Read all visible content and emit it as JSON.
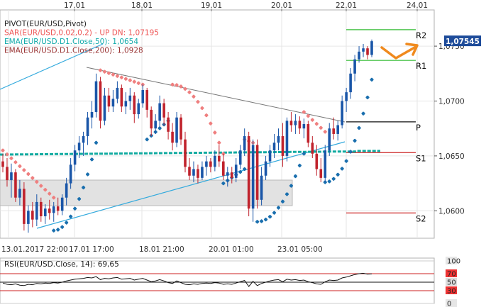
{
  "chart_data": {
    "type": "candlestick",
    "top_dates": [
      "17.01",
      "18.01",
      "19.01",
      "20.01",
      "22.01",
      "24.01"
    ],
    "bottom_dates": [
      "13.01.2017 22:00",
      "17.01 17:00",
      "18.01 21:00",
      "20.01 01:00",
      "23.01 05:00"
    ],
    "y_ticks": [
      "1,0750",
      "1,0700",
      "1,0650",
      "1,0600"
    ],
    "y_tick_values": [
      1.075,
      1.07,
      1.065,
      1.06
    ],
    "ylim": [
      1.0575,
      1.0783
    ],
    "current_price": "1,07545",
    "current_price_value": 1.07545,
    "legend": [
      {
        "text": "PIVOT(EUR/USD,Pivot)",
        "color": "#222222"
      },
      {
        "text": "SAR(EUR/USD,0.02,0.2) - UP  DN: 1,07195",
        "color": "#ee5555"
      },
      {
        "text": "EMA(EUR/USD.D1.Close,50): 1,0654",
        "color": "#11aaaa"
      },
      {
        "text": "EMA(EUR/USD.D1.Close,200): 1,0928",
        "color": "#993333"
      }
    ],
    "pivot_levels": [
      {
        "name": "R2",
        "value": 1.0765,
        "color": "#33bb33"
      },
      {
        "name": "R1",
        "value": 1.0737,
        "color": "#33bb33"
      },
      {
        "name": "P",
        "value": 1.0681,
        "color": "#111111"
      },
      {
        "name": "S1",
        "value": 1.0653,
        "color": "#cc2222"
      },
      {
        "name": "S2",
        "value": 1.0598,
        "color": "#cc2222"
      }
    ],
    "ema50_value": 1.0654,
    "sar_dn_value": 1.07195,
    "candles": [
      {
        "o": 1.0645,
        "h": 1.0652,
        "l": 1.0635,
        "c": 1.064
      },
      {
        "o": 1.064,
        "h": 1.0648,
        "l": 1.0622,
        "c": 1.0628
      },
      {
        "o": 1.0628,
        "h": 1.0643,
        "l": 1.0612,
        "c": 1.0635
      },
      {
        "o": 1.0635,
        "h": 1.0638,
        "l": 1.0608,
        "c": 1.0612
      },
      {
        "o": 1.0612,
        "h": 1.0628,
        "l": 1.0605,
        "c": 1.062
      },
      {
        "o": 1.062,
        "h": 1.0626,
        "l": 1.0582,
        "c": 1.0588
      },
      {
        "o": 1.0588,
        "h": 1.0605,
        "l": 1.058,
        "c": 1.06
      },
      {
        "o": 1.06,
        "h": 1.0608,
        "l": 1.0585,
        "c": 1.0592
      },
      {
        "o": 1.0592,
        "h": 1.0615,
        "l": 1.0586,
        "c": 1.0608
      },
      {
        "o": 1.0608,
        "h": 1.0612,
        "l": 1.059,
        "c": 1.0595
      },
      {
        "o": 1.0595,
        "h": 1.0606,
        "l": 1.0588,
        "c": 1.0602
      },
      {
        "o": 1.0602,
        "h": 1.061,
        "l": 1.0592,
        "c": 1.0598
      },
      {
        "o": 1.0598,
        "h": 1.0608,
        "l": 1.059,
        "c": 1.0604
      },
      {
        "o": 1.0604,
        "h": 1.0612,
        "l": 1.0596,
        "c": 1.06
      },
      {
        "o": 1.06,
        "h": 1.0615,
        "l": 1.0596,
        "c": 1.0612
      },
      {
        "o": 1.0612,
        "h": 1.063,
        "l": 1.0605,
        "c": 1.0625
      },
      {
        "o": 1.0625,
        "h": 1.0648,
        "l": 1.062,
        "c": 1.0642
      },
      {
        "o": 1.0642,
        "h": 1.066,
        "l": 1.0636,
        "c": 1.0655
      },
      {
        "o": 1.0655,
        "h": 1.0668,
        "l": 1.0648,
        "c": 1.0662
      },
      {
        "o": 1.0662,
        "h": 1.0672,
        "l": 1.065,
        "c": 1.0668
      },
      {
        "o": 1.0668,
        "h": 1.069,
        "l": 1.066,
        "c": 1.0685
      },
      {
        "o": 1.0685,
        "h": 1.07,
        "l": 1.0675,
        "c": 1.069
      },
      {
        "o": 1.069,
        "h": 1.0725,
        "l": 1.0685,
        "c": 1.0718
      },
      {
        "o": 1.0718,
        "h": 1.0722,
        "l": 1.0675,
        "c": 1.0682
      },
      {
        "o": 1.0682,
        "h": 1.0712,
        "l": 1.0678,
        "c": 1.0705
      },
      {
        "o": 1.0705,
        "h": 1.0712,
        "l": 1.069,
        "c": 1.0695
      },
      {
        "o": 1.0695,
        "h": 1.071,
        "l": 1.069,
        "c": 1.0702
      },
      {
        "o": 1.0702,
        "h": 1.0718,
        "l": 1.0698,
        "c": 1.0712
      },
      {
        "o": 1.0712,
        "h": 1.0715,
        "l": 1.069,
        "c": 1.0695
      },
      {
        "o": 1.0695,
        "h": 1.0708,
        "l": 1.0688,
        "c": 1.07
      },
      {
        "o": 1.07,
        "h": 1.0712,
        "l": 1.0692,
        "c": 1.0705
      },
      {
        "o": 1.0705,
        "h": 1.0708,
        "l": 1.068,
        "c": 1.0688
      },
      {
        "o": 1.0688,
        "h": 1.0702,
        "l": 1.0684,
        "c": 1.0698
      },
      {
        "o": 1.0698,
        "h": 1.0715,
        "l": 1.0694,
        "c": 1.071
      },
      {
        "o": 1.071,
        "h": 1.0712,
        "l": 1.0685,
        "c": 1.0692
      },
      {
        "o": 1.0692,
        "h": 1.0695,
        "l": 1.0668,
        "c": 1.0675
      },
      {
        "o": 1.0675,
        "h": 1.0688,
        "l": 1.067,
        "c": 1.0682
      },
      {
        "o": 1.0682,
        "h": 1.0705,
        "l": 1.0676,
        "c": 1.0698
      },
      {
        "o": 1.0698,
        "h": 1.0702,
        "l": 1.0678,
        "c": 1.0685
      },
      {
        "o": 1.0685,
        "h": 1.069,
        "l": 1.0665,
        "c": 1.0672
      },
      {
        "o": 1.0672,
        "h": 1.068,
        "l": 1.0655,
        "c": 1.0662
      },
      {
        "o": 1.0662,
        "h": 1.069,
        "l": 1.0658,
        "c": 1.0685
      },
      {
        "o": 1.0685,
        "h": 1.0688,
        "l": 1.066,
        "c": 1.0665
      },
      {
        "o": 1.0665,
        "h": 1.0672,
        "l": 1.0635,
        "c": 1.064
      },
      {
        "o": 1.064,
        "h": 1.0648,
        "l": 1.0628,
        "c": 1.0632
      },
      {
        "o": 1.0632,
        "h": 1.0645,
        "l": 1.0626,
        "c": 1.0638
      },
      {
        "o": 1.0638,
        "h": 1.0642,
        "l": 1.0625,
        "c": 1.063
      },
      {
        "o": 1.063,
        "h": 1.0645,
        "l": 1.0628,
        "c": 1.064
      },
      {
        "o": 1.064,
        "h": 1.065,
        "l": 1.0632,
        "c": 1.0645
      },
      {
        "o": 1.0645,
        "h": 1.0648,
        "l": 1.0635,
        "c": 1.064
      },
      {
        "o": 1.064,
        "h": 1.0655,
        "l": 1.0636,
        "c": 1.065
      },
      {
        "o": 1.065,
        "h": 1.066,
        "l": 1.064,
        "c": 1.0645
      },
      {
        "o": 1.0645,
        "h": 1.0652,
        "l": 1.0628,
        "c": 1.0632
      },
      {
        "o": 1.0632,
        "h": 1.064,
        "l": 1.0622,
        "c": 1.0635
      },
      {
        "o": 1.0635,
        "h": 1.064,
        "l": 1.0625,
        "c": 1.063
      },
      {
        "o": 1.063,
        "h": 1.0648,
        "l": 1.0626,
        "c": 1.0642
      },
      {
        "o": 1.0642,
        "h": 1.066,
        "l": 1.0638,
        "c": 1.0655
      },
      {
        "o": 1.0655,
        "h": 1.0675,
        "l": 1.065,
        "c": 1.0668
      },
      {
        "o": 1.0668,
        "h": 1.0672,
        "l": 1.0595,
        "c": 1.0602
      },
      {
        "o": 1.0602,
        "h": 1.0665,
        "l": 1.059,
        "c": 1.066
      },
      {
        "o": 1.066,
        "h": 1.0665,
        "l": 1.0602,
        "c": 1.061
      },
      {
        "o": 1.061,
        "h": 1.064,
        "l": 1.0605,
        "c": 1.0632
      },
      {
        "o": 1.0632,
        "h": 1.065,
        "l": 1.0628,
        "c": 1.0645
      },
      {
        "o": 1.0645,
        "h": 1.066,
        "l": 1.064,
        "c": 1.0655
      },
      {
        "o": 1.0655,
        "h": 1.067,
        "l": 1.0648,
        "c": 1.0662
      },
      {
        "o": 1.0662,
        "h": 1.0675,
        "l": 1.0655,
        "c": 1.0668
      },
      {
        "o": 1.0668,
        "h": 1.068,
        "l": 1.064,
        "c": 1.065
      },
      {
        "o": 1.065,
        "h": 1.0685,
        "l": 1.0645,
        "c": 1.0682
      },
      {
        "o": 1.0682,
        "h": 1.069,
        "l": 1.0672,
        "c": 1.0678
      },
      {
        "o": 1.0678,
        "h": 1.0688,
        "l": 1.067,
        "c": 1.0682
      },
      {
        "o": 1.0682,
        "h": 1.0686,
        "l": 1.067,
        "c": 1.0675
      },
      {
        "o": 1.0675,
        "h": 1.0684,
        "l": 1.0666,
        "c": 1.0679
      },
      {
        "o": 1.0679,
        "h": 1.0682,
        "l": 1.0658,
        "c": 1.0662
      },
      {
        "o": 1.0662,
        "h": 1.0668,
        "l": 1.0648,
        "c": 1.0652
      },
      {
        "o": 1.0652,
        "h": 1.066,
        "l": 1.0632,
        "c": 1.0638
      },
      {
        "o": 1.0638,
        "h": 1.0648,
        "l": 1.0626,
        "c": 1.063
      },
      {
        "o": 1.063,
        "h": 1.066,
        "l": 1.0626,
        "c": 1.0655
      },
      {
        "o": 1.0655,
        "h": 1.068,
        "l": 1.065,
        "c": 1.0675
      },
      {
        "o": 1.0675,
        "h": 1.0685,
        "l": 1.0665,
        "c": 1.067
      },
      {
        "o": 1.067,
        "h": 1.0682,
        "l": 1.0664,
        "c": 1.0678
      },
      {
        "o": 1.0678,
        "h": 1.0705,
        "l": 1.0675,
        "c": 1.07
      },
      {
        "o": 1.07,
        "h": 1.0712,
        "l": 1.069,
        "c": 1.0708
      },
      {
        "o": 1.0708,
        "h": 1.073,
        "l": 1.0702,
        "c": 1.0725
      },
      {
        "o": 1.0725,
        "h": 1.0742,
        "l": 1.0718,
        "c": 1.0738
      },
      {
        "o": 1.0738,
        "h": 1.075,
        "l": 1.0735,
        "c": 1.0745
      },
      {
        "o": 1.0745,
        "h": 1.0752,
        "l": 1.074,
        "c": 1.0748
      },
      {
        "o": 1.0748,
        "h": 1.075,
        "l": 1.0738,
        "c": 1.0742
      },
      {
        "o": 1.0742,
        "h": 1.0756,
        "l": 1.074,
        "c": 1.07545
      }
    ],
    "rsi": {
      "label": "RSI(EUR/USD.Close, 14): 69,65",
      "value": 69.65,
      "ticks": [
        "100",
        "70",
        "50",
        "30",
        "0"
      ],
      "levels": [
        100,
        70,
        50,
        30,
        0
      ],
      "series": [
        48,
        45,
        44,
        46,
        43,
        42,
        45,
        44,
        47,
        46,
        48,
        47,
        49,
        48,
        50,
        53,
        55,
        57,
        58,
        59,
        61,
        60,
        63,
        56,
        59,
        58,
        60,
        61,
        57,
        58,
        59,
        55,
        57,
        59,
        55,
        51,
        53,
        56,
        53,
        49,
        47,
        53,
        49,
        45,
        44,
        46,
        45,
        47,
        48,
        47,
        49,
        48,
        45,
        46,
        45,
        48,
        51,
        54,
        40,
        52,
        42,
        47,
        50,
        53,
        55,
        56,
        51,
        57,
        55,
        56,
        54,
        55,
        51,
        49,
        46,
        45,
        51,
        55,
        54,
        55,
        60,
        62,
        65,
        68,
        70,
        71,
        69,
        69.65
      ]
    }
  }
}
